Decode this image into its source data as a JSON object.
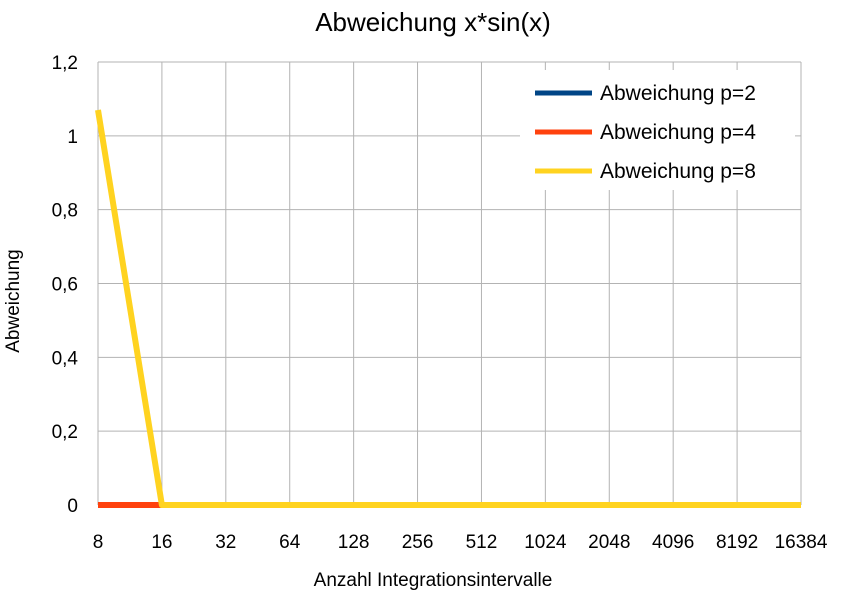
{
  "chart_data": {
    "type": "line",
    "title": "Abweichung x*sin(x)",
    "xlabel": "Anzahl Integrationsintervalle",
    "ylabel": "Abweichung",
    "categories": [
      "8",
      "16",
      "32",
      "64",
      "128",
      "256",
      "512",
      "1024",
      "2048",
      "4096",
      "8192",
      "16384"
    ],
    "ylim": [
      0,
      1.2
    ],
    "yticks": [
      0,
      0.2,
      0.4,
      0.6,
      0.8,
      1,
      1.2
    ],
    "ytick_labels": [
      "0",
      "0,2",
      "0,4",
      "0,6",
      "0,8",
      "1",
      "1,2"
    ],
    "grid": true,
    "legend_position": "top-right",
    "series": [
      {
        "name": "Abweichung p=2",
        "color": "#004586",
        "values": [
          0,
          0,
          0,
          0,
          0,
          0,
          0,
          0,
          0,
          0,
          0,
          0
        ]
      },
      {
        "name": "Abweichung p=4",
        "color": "#ff420e",
        "values": [
          0,
          0,
          0,
          0,
          0,
          0,
          0,
          0,
          0,
          0,
          0,
          0
        ]
      },
      {
        "name": "Abweichung p=8",
        "color": "#ffd320",
        "values": [
          1.07,
          0,
          0,
          0,
          0,
          0,
          0,
          0,
          0,
          0,
          0,
          0
        ]
      }
    ]
  }
}
